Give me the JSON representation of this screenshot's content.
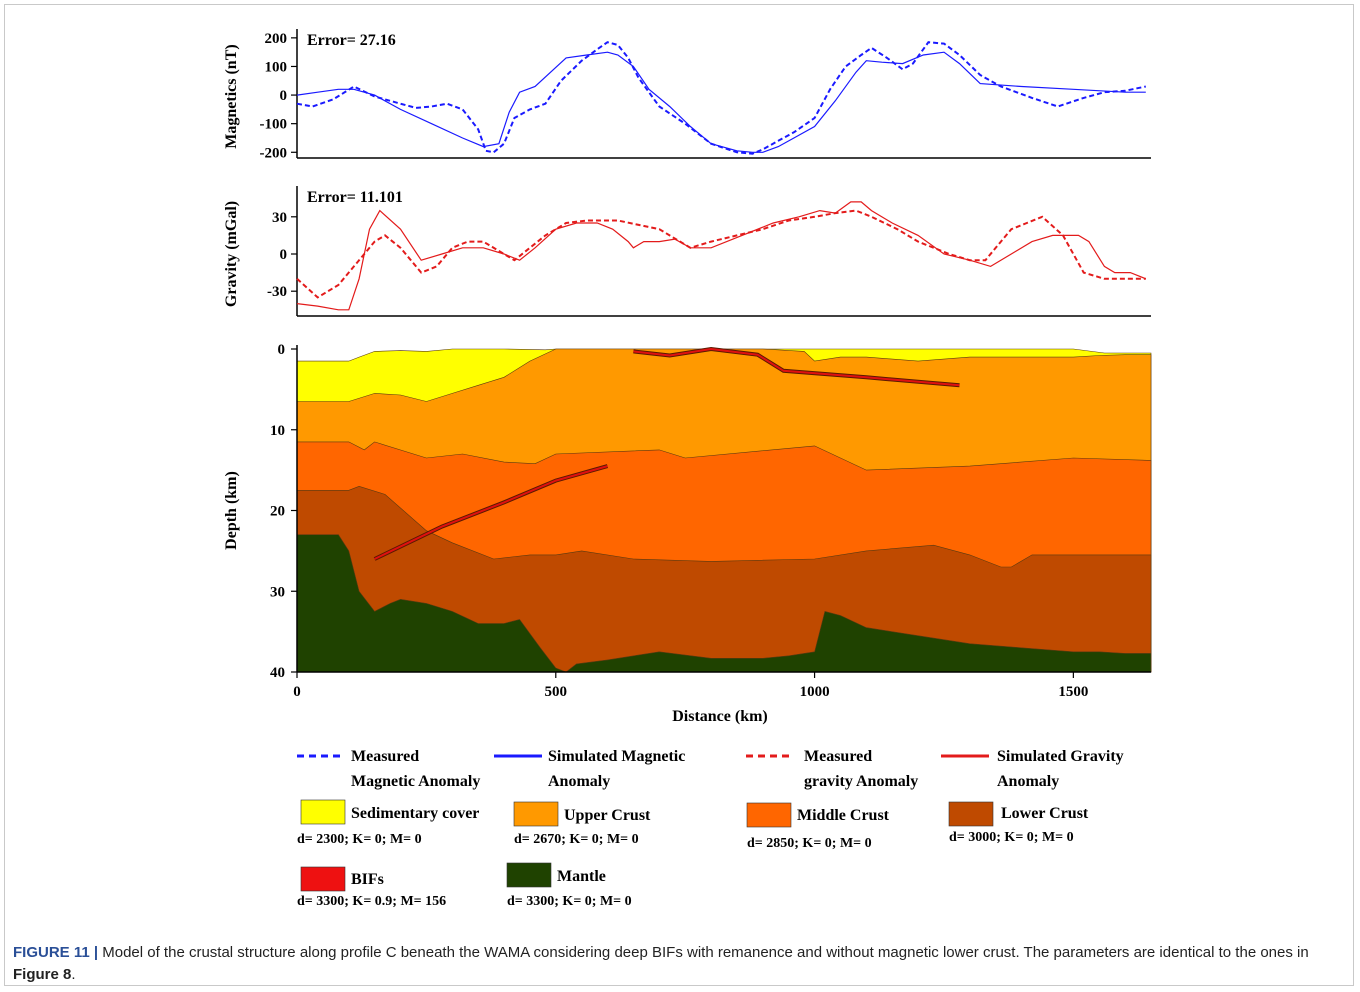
{
  "chart_data": [
    {
      "type": "line",
      "title": "",
      "ylabel": "Magnetics (nT)",
      "ylim": [
        -220,
        210
      ],
      "xlim": [
        0,
        1650
      ],
      "yticks": [
        "200",
        "100",
        "0",
        "-100",
        "-200"
      ],
      "annotation": "Error= 27.16",
      "colors": {
        "line": "#1a1aff",
        "annotation": "#1a1aff"
      },
      "series": [
        {
          "name": "Measured Magnetic Anomaly",
          "style": "dashed",
          "x": [
            0,
            30,
            70,
            110,
            150,
            200,
            230,
            260,
            290,
            320,
            350,
            365,
            380,
            400,
            420,
            450,
            480,
            510,
            550,
            580,
            600,
            620,
            640,
            660,
            700,
            750,
            800,
            850,
            880,
            900,
            930,
            960,
            1000,
            1030,
            1060,
            1090,
            1110,
            1140,
            1170,
            1190,
            1220,
            1250,
            1280,
            1320,
            1360,
            1420,
            1470,
            1520,
            1560,
            1600,
            1640
          ],
          "y": [
            -30,
            -40,
            -15,
            30,
            -5,
            -30,
            -45,
            -40,
            -30,
            -50,
            -120,
            -195,
            -200,
            -170,
            -80,
            -50,
            -30,
            50,
            120,
            160,
            185,
            175,
            130,
            60,
            -40,
            -100,
            -170,
            -200,
            -205,
            -190,
            -160,
            -130,
            -80,
            20,
            100,
            140,
            165,
            130,
            90,
            110,
            185,
            180,
            140,
            70,
            30,
            -10,
            -40,
            -10,
            10,
            15,
            30
          ]
        },
        {
          "name": "Simulated Magnetic Anomaly",
          "style": "solid",
          "x": [
            0,
            40,
            80,
            110,
            150,
            200,
            260,
            320,
            360,
            390,
            410,
            430,
            460,
            490,
            520,
            560,
            600,
            620,
            650,
            680,
            720,
            760,
            800,
            850,
            880,
            900,
            930,
            960,
            1000,
            1040,
            1080,
            1100,
            1130,
            1170,
            1210,
            1250,
            1280,
            1320,
            1400,
            1500,
            1600,
            1640
          ],
          "y": [
            0,
            10,
            20,
            20,
            0,
            -50,
            -100,
            -150,
            -180,
            -170,
            -60,
            10,
            30,
            80,
            130,
            140,
            150,
            140,
            100,
            20,
            -40,
            -110,
            -170,
            -195,
            -200,
            -200,
            -180,
            -150,
            -110,
            -20,
            80,
            120,
            115,
            110,
            140,
            150,
            110,
            40,
            30,
            20,
            10,
            10
          ]
        }
      ]
    },
    {
      "type": "line",
      "title": "",
      "ylabel": "Gravity (mGal)",
      "ylim": [
        -50,
        50
      ],
      "xlim": [
        0,
        1650
      ],
      "yticks": [
        "30",
        "0",
        "-30"
      ],
      "annotation": "Error= 11.101",
      "colors": {
        "line": "#e31b1b",
        "annotation": "#e31b1b"
      },
      "series": [
        {
          "name": "Measured gravity Anomaly",
          "style": "dashed",
          "x": [
            0,
            40,
            80,
            110,
            130,
            150,
            170,
            200,
            240,
            270,
            300,
            330,
            360,
            400,
            420,
            450,
            480,
            500,
            520,
            560,
            620,
            700,
            760,
            800,
            850,
            900,
            950,
            1000,
            1040,
            1080,
            1110,
            1160,
            1200,
            1260,
            1300,
            1330,
            1360,
            1380,
            1410,
            1440,
            1480,
            1520,
            1560,
            1600,
            1640
          ],
          "y": [
            -20,
            -35,
            -25,
            -10,
            0,
            10,
            15,
            5,
            -15,
            -10,
            5,
            10,
            10,
            0,
            -5,
            5,
            15,
            20,
            25,
            27,
            27,
            20,
            5,
            10,
            15,
            20,
            27,
            30,
            33,
            35,
            30,
            20,
            10,
            0,
            -5,
            -5,
            10,
            20,
            25,
            30,
            15,
            -15,
            -20,
            -20,
            -20
          ]
        },
        {
          "name": "Simulated Gravity Anomaly",
          "style": "solid",
          "x": [
            0,
            40,
            80,
            100,
            120,
            140,
            160,
            200,
            240,
            280,
            320,
            360,
            400,
            430,
            460,
            500,
            540,
            580,
            610,
            640,
            650,
            670,
            700,
            730,
            760,
            800,
            860,
            920,
            970,
            1010,
            1040,
            1070,
            1090,
            1110,
            1150,
            1200,
            1250,
            1300,
            1340,
            1380,
            1420,
            1460,
            1480,
            1510,
            1530,
            1560,
            1580,
            1610,
            1640
          ],
          "y": [
            -40,
            -42,
            -45,
            -45,
            -20,
            20,
            35,
            20,
            -5,
            0,
            5,
            5,
            0,
            -5,
            5,
            20,
            25,
            25,
            20,
            10,
            5,
            10,
            10,
            12,
            5,
            5,
            15,
            25,
            30,
            35,
            33,
            42,
            42,
            35,
            25,
            15,
            0,
            -5,
            -10,
            0,
            10,
            15,
            15,
            15,
            10,
            -10,
            -15,
            -15,
            -20
          ]
        }
      ]
    },
    {
      "type": "area",
      "title": "",
      "xlabel": "Distance (km)",
      "ylabel": "Depth (km)",
      "xlim": [
        0,
        1650
      ],
      "ylim": [
        40,
        0
      ],
      "xticks": [
        "0",
        "500",
        "1000",
        "1500"
      ],
      "yticks": [
        "0",
        "10",
        "20",
        "30",
        "40"
      ],
      "layers": [
        {
          "name": "Sedimentary cover",
          "color": "#ffff00",
          "top_x": [
            0,
            100,
            120,
            150,
            200,
            250,
            300,
            400,
            480,
            500,
            1000,
            1050,
            1100,
            1200,
            1300,
            1400,
            1500,
            1560,
            1600,
            1650
          ],
          "top_y": [
            1.5,
            1.5,
            1,
            0.3,
            0.2,
            0.3,
            0,
            0,
            0.1,
            0,
            0,
            0,
            0,
            0,
            0,
            0,
            0,
            0.5,
            0.5,
            0.5
          ]
        },
        {
          "name": "Upper Crust",
          "color": "#ff9900",
          "top_x": [
            0,
            100,
            150,
            200,
            250,
            300,
            350,
            400,
            450,
            500,
            550,
            640,
            700,
            900,
            980,
            1000,
            1050,
            1100,
            1200,
            1300,
            1400,
            1500,
            1550,
            1600,
            1650
          ],
          "top_y": [
            6.5,
            6.5,
            5.5,
            5.7,
            6.5,
            5.5,
            4.5,
            3.5,
            1.5,
            0,
            0,
            0,
            0,
            0,
            0.3,
            1.5,
            1,
            1,
            1.5,
            1,
            1,
            1,
            0.8,
            0.7,
            0.7
          ]
        },
        {
          "name": "Middle Crust",
          "color": "#ff6600",
          "top_x": [
            0,
            100,
            130,
            150,
            250,
            320,
            400,
            460,
            500,
            700,
            750,
            1000,
            1100,
            1300,
            1500,
            1650
          ],
          "top_y": [
            11.5,
            11.5,
            12.5,
            11.5,
            13.5,
            13,
            14,
            14.2,
            13,
            12.5,
            13.5,
            12,
            15,
            14.5,
            13.5,
            13.8
          ]
        },
        {
          "name": "Lower Crust",
          "color": "#bf4a00",
          "top_x": [
            0,
            100,
            120,
            170,
            250,
            300,
            380,
            450,
            500,
            550,
            650,
            800,
            1000,
            1100,
            1230,
            1300,
            1360,
            1380,
            1420,
            1500,
            1650
          ],
          "top_y": [
            17.5,
            17.5,
            17,
            18,
            22.5,
            24,
            26,
            25.5,
            25.5,
            25,
            26,
            26.3,
            26,
            25,
            24.3,
            25.5,
            27,
            27,
            25.5,
            25.5,
            25.5
          ]
        },
        {
          "name": "Mantle",
          "color": "#1f4200",
          "top_x": [
            0,
            80,
            100,
            120,
            150,
            180,
            200,
            250,
            300,
            350,
            400,
            430,
            470,
            500,
            520,
            540,
            600,
            700,
            800,
            900,
            950,
            1000,
            1020,
            1050,
            1100,
            1200,
            1300,
            1400,
            1500,
            1550,
            1600,
            1650
          ],
          "top_y": [
            23,
            23,
            25,
            30,
            32.5,
            31.5,
            31,
            31.5,
            32.5,
            34,
            34,
            33.5,
            37,
            39.5,
            40,
            39,
            38.5,
            37.5,
            38.3,
            38.3,
            38,
            37.5,
            32.5,
            33,
            34.5,
            35.5,
            36.5,
            37,
            37.5,
            37.5,
            37.7,
            37.7
          ]
        }
      ],
      "bifs": [
        {
          "name": "BIFs",
          "x": [
            150,
            280,
            400,
            500,
            600
          ],
          "y": [
            26,
            22,
            19,
            16.3,
            14.5
          ]
        },
        {
          "name": "BIFs",
          "x": [
            650,
            720,
            800,
            890,
            940,
            1100,
            1280
          ],
          "y": [
            0.3,
            0.8,
            0,
            0.7,
            2.7,
            3.5,
            4.5
          ]
        }
      ]
    }
  ],
  "legend": {
    "lines": [
      {
        "label": "Measured Magnetic Anomaly",
        "color": "#1a1aff",
        "style": "dashed"
      },
      {
        "label": "Simulated Magnetic Anomaly",
        "color": "#1a1aff",
        "style": "solid"
      },
      {
        "label": "Measured gravity Anomaly",
        "color": "#e31b1b",
        "style": "dashed"
      },
      {
        "label": "Simulated Gravity Anomaly",
        "color": "#e31b1b",
        "style": "solid"
      }
    ],
    "layers": [
      {
        "name": "Sedimentary cover",
        "params": "d= 2300; K= 0; M= 0",
        "color": "#ffff00"
      },
      {
        "name": "Upper Crust",
        "params": "d= 2670; K= 0; M= 0",
        "color": "#ff9900"
      },
      {
        "name": "Middle Crust",
        "params": "d= 2850; K= 0; M= 0",
        "color": "#ff6600"
      },
      {
        "name": "Lower Crust",
        "params": "d= 3000; K= 0; M= 0",
        "color": "#bf4a00"
      },
      {
        "name": "BIFs",
        "params": "d= 3300; K= 0.9; M= 156",
        "color": "#ee1111"
      },
      {
        "name": "Mantle",
        "params": "d= 3300; K= 0; M= 0",
        "color": "#1f4200"
      }
    ]
  },
  "caption": {
    "label": "FIGURE 11 |",
    "text1": " Model of the crustal structure along profile C beneath the WAMA considering deep BIFs with remanence and without magnetic lower crust. The parameters are identical to the ones in ",
    "ref": "Figure 8",
    "text2": "."
  }
}
